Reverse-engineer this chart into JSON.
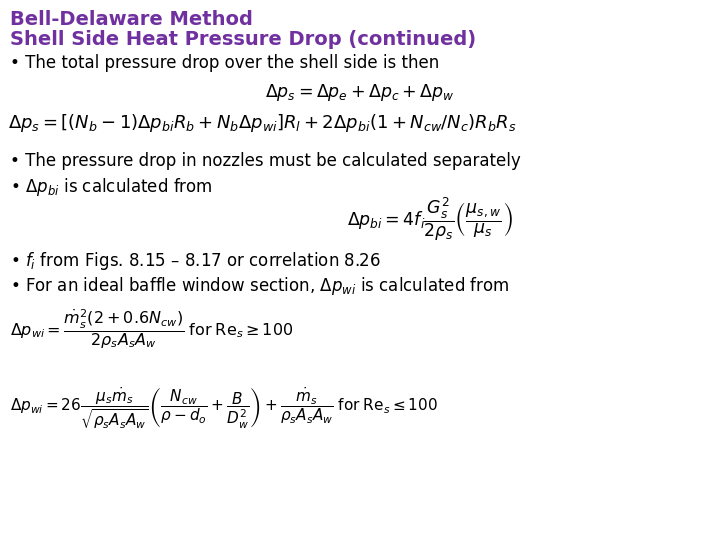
{
  "title_line1": "Bell-Delaware Method",
  "title_line2": "Shell Side Heat Pressure Drop (continued)",
  "title_color": "#7030A0",
  "background_color": "#ffffff",
  "bullet1": "The total pressure drop over the shell side is then",
  "bullet2": "The pressure drop in nozzles must be calculated separately",
  "bullet3_text": "$\\Delta p_{bi}$ is calculated from",
  "bullet4": "$f_i$ from Figs. 8.15 – 8.17 or correlation 8.26",
  "bullet5": "For an ideal baffle window section, $\\Delta p_{wi}$ is calculated from",
  "text_color": "#000000",
  "figsize": [
    7.2,
    5.4
  ],
  "dpi": 100
}
